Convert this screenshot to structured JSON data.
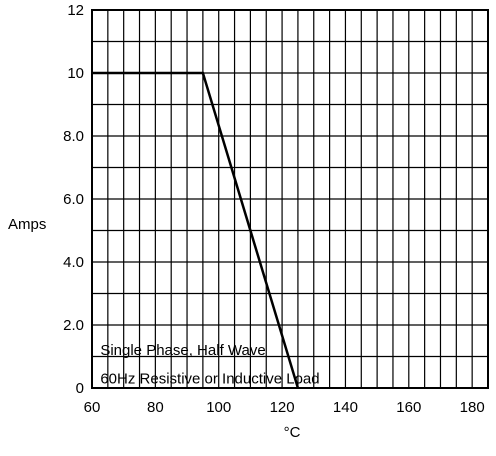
{
  "chart_data": {
    "type": "line",
    "title": "",
    "xlabel": "°C",
    "ylabel": "Amps",
    "xlim": [
      60,
      185
    ],
    "ylim": [
      0,
      12
    ],
    "x_ticks": [
      60,
      80,
      100,
      120,
      140,
      160,
      180
    ],
    "x_tick_labels": [
      "60",
      "80",
      "100",
      "120",
      "140",
      "160",
      "180"
    ],
    "y_ticks": [
      0,
      2,
      4,
      6,
      8,
      10,
      12
    ],
    "y_tick_labels": [
      "0",
      "2.0",
      "4.0",
      "6.0",
      "8.0",
      "10",
      "12"
    ],
    "x_minor_step": 5,
    "y_minor_step": 1,
    "grid": true,
    "series": [
      {
        "x": [
          60,
          95,
          125
        ],
        "y": [
          10,
          10,
          0
        ]
      }
    ],
    "annotation": {
      "lines": [
        "Single Phase, Half Wave",
        "60Hz Resistive or Inductive Load"
      ],
      "x": 62,
      "y_lines": [
        1.2,
        0.3
      ]
    }
  }
}
